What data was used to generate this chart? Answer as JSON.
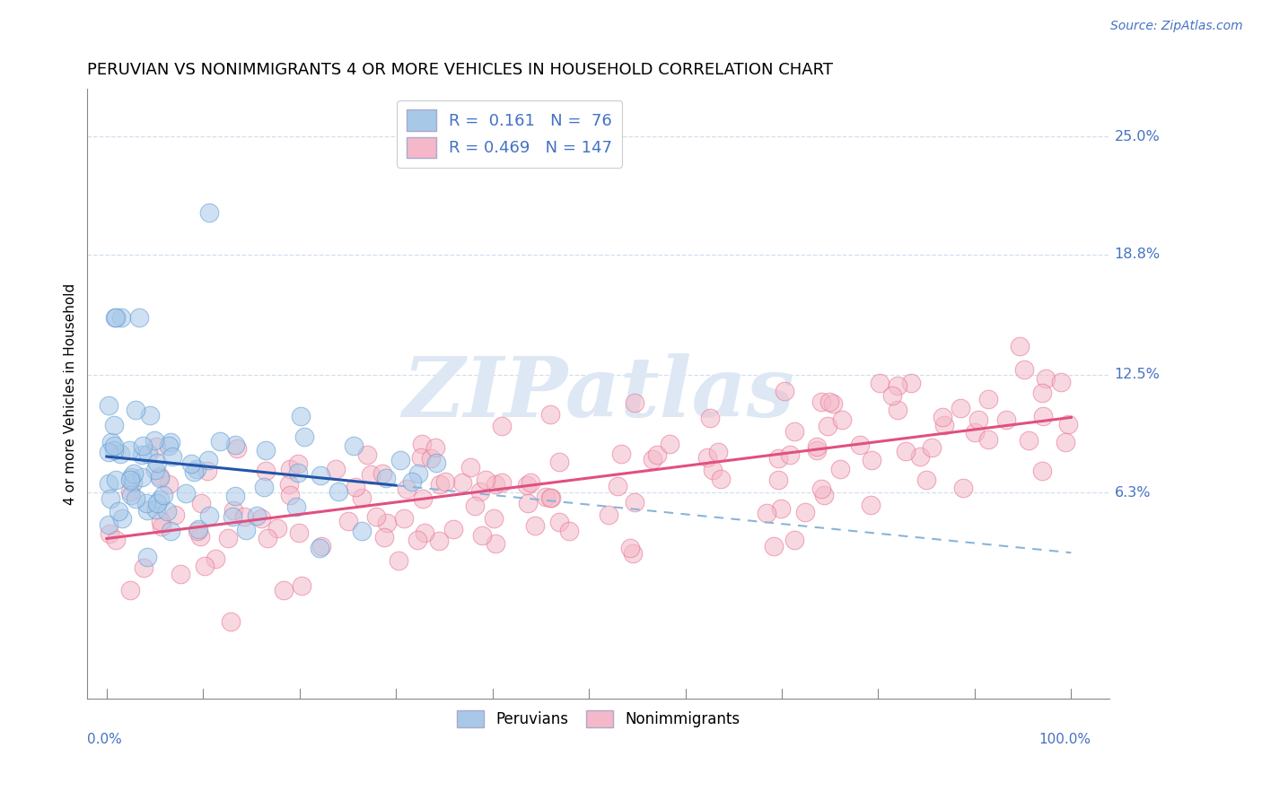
{
  "title": "PERUVIAN VS NONIMMIGRANTS 4 OR MORE VEHICLES IN HOUSEHOLD CORRELATION CHART",
  "source_text": "Source: ZipAtlas.com",
  "ylabel": "4 or more Vehicles in Household",
  "ytick_labels": [
    "6.3%",
    "12.5%",
    "18.8%",
    "25.0%"
  ],
  "ytick_values": [
    6.3,
    12.5,
    18.8,
    25.0
  ],
  "ylim_bottom": -4.5,
  "ylim_top": 27.5,
  "xlim_left": -2,
  "xlim_right": 104,
  "peruvian_color": "#a8c8e8",
  "peruvian_edge_color": "#5b9bd5",
  "nonimmigrant_color": "#f4b8c8",
  "nonimmigrant_edge_color": "#e87090",
  "peruvian_line_color": "#2255aa",
  "peruvian_line_dash_color": "#8ab4d8",
  "nonimmigrant_line_color": "#e05080",
  "background_color": "#ffffff",
  "grid_color": "#ccddee",
  "watermark_color": "#dde8f4",
  "watermark_text": "ZIPatlas",
  "title_fontsize": 13,
  "legend_r1_text": "R =  0.161   N =  76",
  "legend_r2_text": "R = 0.469   N = 147",
  "peru_seed": 12345,
  "nonimm_seed": 67890
}
